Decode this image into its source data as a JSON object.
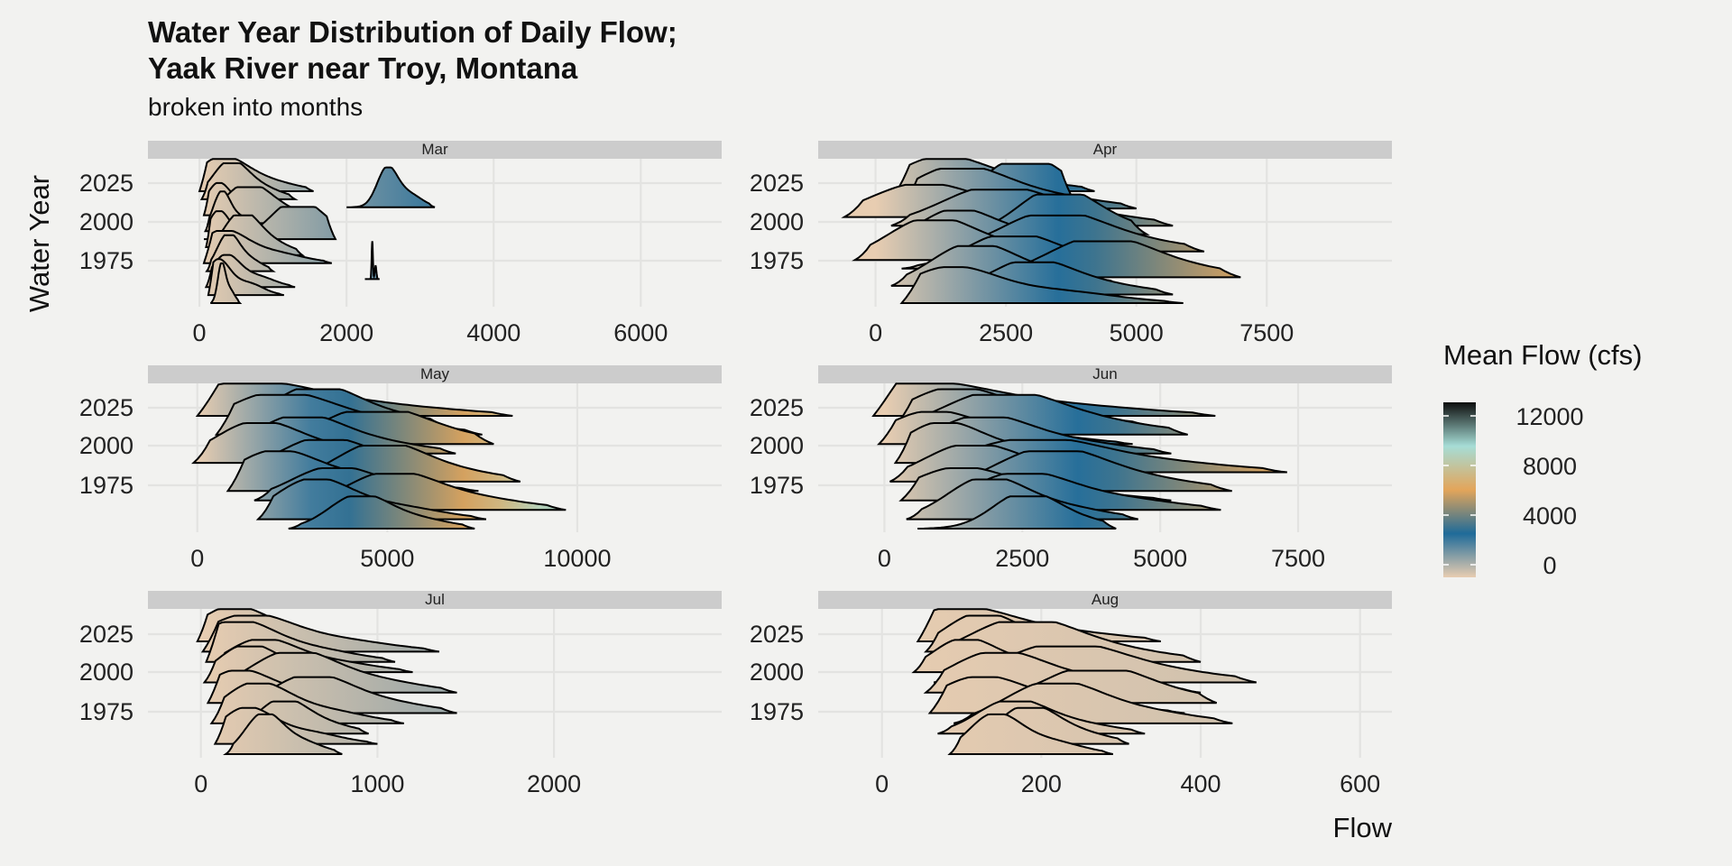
{
  "chart_data": {
    "type": "ridgeline",
    "title_line1": "Water Year Distribution of Daily Flow;",
    "title_line2": "Yaak River near Troy, Montana",
    "subtitle": "broken into months",
    "xlabel": "Flow",
    "ylabel": "Water Year",
    "y_ticks": [
      "2025",
      "2000",
      "1975"
    ],
    "legend": {
      "title": "Mean Flow (cfs)",
      "ticks": [
        "12000",
        "8000",
        "4000",
        "0"
      ],
      "placement": "right",
      "colors": [
        "#e8cdb1",
        "#1f6b99",
        "#e3a55a",
        "#a6ddd6",
        "#0d0d0d"
      ]
    },
    "panels": [
      {
        "month": "Mar",
        "x_ticks": [
          0,
          2000,
          4000,
          6000
        ],
        "xlim": [
          -700,
          7100
        ],
        "color_max": 3000,
        "ridges": [
          {
            "start": 0,
            "end": 1550,
            "peak": 280,
            "span": 300
          },
          {
            "start": 30,
            "end": 1300,
            "peak": 400,
            "span": 260
          },
          {
            "start": 2000,
            "end": 3200,
            "peak": 2550,
            "span": 160
          },
          {
            "start": 60,
            "end": 1100,
            "peak": 250,
            "span": 220
          },
          {
            "start": 120,
            "end": 1700,
            "peak": 620,
            "span": 280
          },
          {
            "start": 80,
            "end": 900,
            "peak": 300,
            "span": 200
          },
          {
            "start": 60,
            "end": 1850,
            "peak": 1300,
            "span": 260
          },
          {
            "start": 90,
            "end": 1000,
            "peak": 250,
            "span": 230
          },
          {
            "start": 120,
            "end": 1400,
            "peak": 550,
            "span": 260
          },
          {
            "start": 60,
            "end": 1800,
            "peak": 300,
            "span": 260
          },
          {
            "start": 100,
            "end": 1000,
            "peak": 380,
            "span": 230
          },
          {
            "start": 2250,
            "end": 2450,
            "peak": 2350,
            "span": 60
          },
          {
            "start": 90,
            "end": 1300,
            "peak": 350,
            "span": 220
          },
          {
            "start": 120,
            "end": 1150,
            "peak": 250,
            "span": 220
          },
          {
            "start": 150,
            "end": 550,
            "peak": 300,
            "span": 180
          }
        ]
      },
      {
        "month": "Apr",
        "x_ticks": [
          0,
          2500,
          5000,
          7500
        ],
        "xlim": [
          -1100,
          9900
        ],
        "color_max": 7000,
        "ridges": [
          {
            "start": 400,
            "end": 4200,
            "peak": 1200,
            "span": 300
          },
          {
            "start": 200,
            "end": 3800,
            "peak": 2800,
            "span": 260
          },
          {
            "start": 500,
            "end": 5000,
            "peak": 1500,
            "span": 280
          },
          {
            "start": -600,
            "end": 4800,
            "peak": 800,
            "span": 240
          },
          {
            "start": 300,
            "end": 5700,
            "peak": 2200,
            "span": 260
          },
          {
            "start": 700,
            "end": 5200,
            "peak": 3400,
            "span": 220
          },
          {
            "start": 400,
            "end": 4300,
            "peak": 1500,
            "span": 240
          },
          {
            "start": 600,
            "end": 6300,
            "peak": 3300,
            "span": 230
          },
          {
            "start": -400,
            "end": 4100,
            "peak": 1000,
            "span": 250
          },
          {
            "start": 500,
            "end": 5200,
            "peak": 2500,
            "span": 240
          },
          {
            "start": 1000,
            "end": 7000,
            "peak": 4200,
            "span": 220
          },
          {
            "start": 300,
            "end": 4800,
            "peak": 1800,
            "span": 240
          },
          {
            "start": 800,
            "end": 5700,
            "peak": 2900,
            "span": 220
          },
          {
            "start": 500,
            "end": 5900,
            "peak": 1400,
            "span": 230
          }
        ]
      },
      {
        "month": "May",
        "x_ticks": [
          0,
          5000,
          10000
        ],
        "xlim": [
          -1300,
          13800
        ],
        "color_max": 10000,
        "ridges": [
          {
            "start": 0,
            "end": 8300,
            "peak": 1200,
            "span": 300
          },
          {
            "start": 800,
            "end": 6500,
            "peak": 3000,
            "span": 260
          },
          {
            "start": 500,
            "end": 7500,
            "peak": 2000,
            "span": 280
          },
          {
            "start": 300,
            "end": 7800,
            "peak": 4500,
            "span": 240
          },
          {
            "start": 600,
            "end": 6800,
            "peak": 2600,
            "span": 250
          },
          {
            "start": -100,
            "end": 6400,
            "peak": 1500,
            "span": 240
          },
          {
            "start": 1200,
            "end": 7300,
            "peak": 3200,
            "span": 250
          },
          {
            "start": 1800,
            "end": 8500,
            "peak": 4700,
            "span": 230
          },
          {
            "start": 800,
            "end": 7400,
            "peak": 2000,
            "span": 240
          },
          {
            "start": 1500,
            "end": 8200,
            "peak": 3500,
            "span": 230
          },
          {
            "start": 2200,
            "end": 9700,
            "peak": 5000,
            "span": 220
          },
          {
            "start": 1600,
            "end": 7600,
            "peak": 3000,
            "span": 230
          },
          {
            "start": 2400,
            "end": 7300,
            "peak": 4200,
            "span": 220
          }
        ]
      },
      {
        "month": "Jun",
        "x_ticks": [
          0,
          2500,
          5000,
          7500
        ],
        "xlim": [
          -1200,
          9200
        ],
        "color_max": 7000,
        "ridges": [
          {
            "start": -200,
            "end": 6000,
            "peak": 500,
            "span": 300
          },
          {
            "start": 200,
            "end": 4800,
            "peak": 1200,
            "span": 260
          },
          {
            "start": 300,
            "end": 5500,
            "peak": 2000,
            "span": 280
          },
          {
            "start": -100,
            "end": 4500,
            "peak": 800,
            "span": 240
          },
          {
            "start": 400,
            "end": 5200,
            "peak": 1700,
            "span": 250
          },
          {
            "start": 200,
            "end": 4400,
            "peak": 1000,
            "span": 240
          },
          {
            "start": 600,
            "end": 7300,
            "peak": 2600,
            "span": 250
          },
          {
            "start": 100,
            "end": 4900,
            "peak": 1500,
            "span": 240
          },
          {
            "start": 500,
            "end": 6300,
            "peak": 2900,
            "span": 230
          },
          {
            "start": 300,
            "end": 5200,
            "peak": 1300,
            "span": 240
          },
          {
            "start": 700,
            "end": 6100,
            "peak": 2400,
            "span": 230
          },
          {
            "start": 400,
            "end": 4600,
            "peak": 1800,
            "span": 230
          },
          {
            "start": 600,
            "end": 4200,
            "peak": 2500,
            "span": 220
          }
        ]
      },
      {
        "month": "Jul",
        "x_ticks": [
          0,
          1000,
          2000
        ],
        "xlim": [
          -300,
          2950
        ],
        "color_max": 2500,
        "ridges": [
          {
            "start": -20,
            "end": 850,
            "peak": 160,
            "span": 300
          },
          {
            "start": 10,
            "end": 1350,
            "peak": 250,
            "span": 260
          },
          {
            "start": 30,
            "end": 1100,
            "peak": 180,
            "span": 280
          },
          {
            "start": 60,
            "end": 1200,
            "peak": 330,
            "span": 240
          },
          {
            "start": 20,
            "end": 960,
            "peak": 250,
            "span": 250
          },
          {
            "start": 80,
            "end": 1450,
            "peak": 500,
            "span": 240
          },
          {
            "start": 40,
            "end": 1050,
            "peak": 200,
            "span": 250
          },
          {
            "start": 100,
            "end": 1450,
            "peak": 600,
            "span": 230
          },
          {
            "start": 60,
            "end": 1150,
            "peak": 300,
            "span": 240
          },
          {
            "start": 120,
            "end": 950,
            "peak": 450,
            "span": 230
          },
          {
            "start": 80,
            "end": 1000,
            "peak": 250,
            "span": 230
          },
          {
            "start": 140,
            "end": 800,
            "peak": 350,
            "span": 220
          }
        ]
      },
      {
        "month": "Aug",
        "x_ticks": [
          0,
          200,
          400,
          600
        ],
        "xlim": [
          -80,
          640
        ],
        "color_max": 2500,
        "ridges": [
          {
            "start": 45,
            "end": 350,
            "peak": 90,
            "span": 300
          },
          {
            "start": 55,
            "end": 290,
            "peak": 120,
            "span": 260
          },
          {
            "start": 70,
            "end": 400,
            "peak": 170,
            "span": 280
          },
          {
            "start": 40,
            "end": 260,
            "peak": 100,
            "span": 240
          },
          {
            "start": 65,
            "end": 470,
            "peak": 220,
            "span": 250
          },
          {
            "start": 55,
            "end": 400,
            "peak": 140,
            "span": 240
          },
          {
            "start": 80,
            "end": 420,
            "peak": 260,
            "span": 250
          },
          {
            "start": 60,
            "end": 380,
            "peak": 120,
            "span": 240
          },
          {
            "start": 90,
            "end": 440,
            "peak": 210,
            "span": 230
          },
          {
            "start": 70,
            "end": 330,
            "peak": 160,
            "span": 230
          },
          {
            "start": 95,
            "end": 310,
            "peak": 180,
            "span": 230
          },
          {
            "start": 85,
            "end": 290,
            "peak": 140,
            "span": 220
          }
        ]
      }
    ]
  }
}
